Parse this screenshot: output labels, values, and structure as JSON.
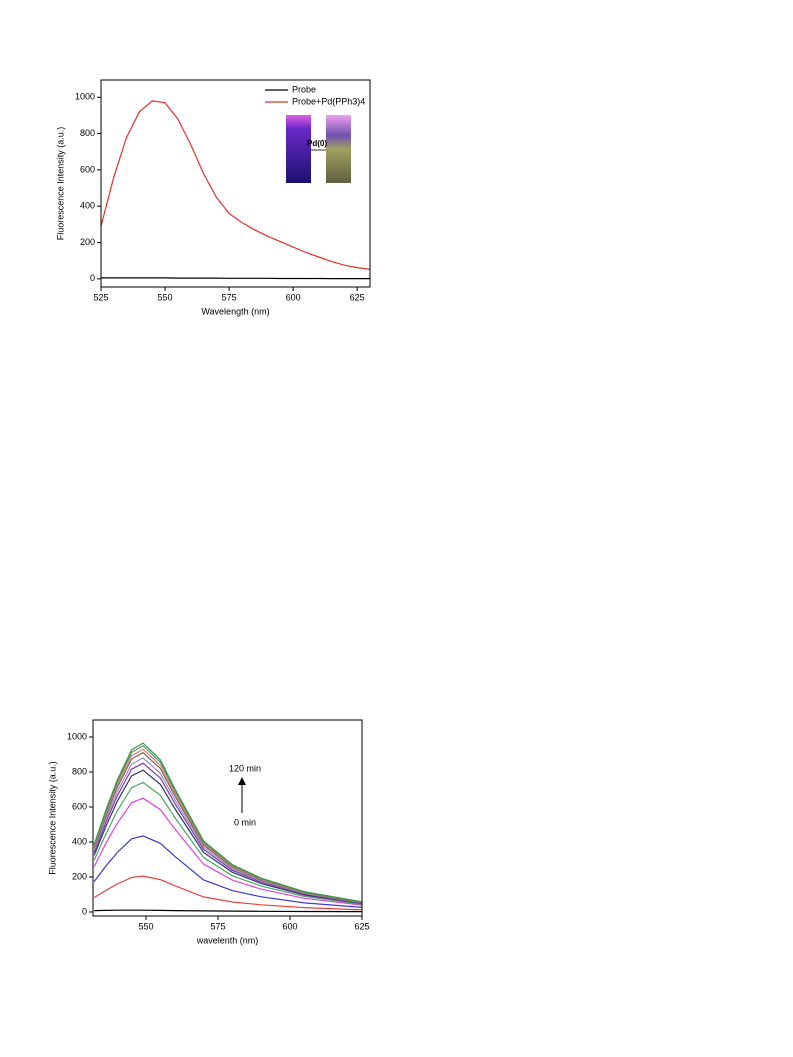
{
  "chart_data": [
    {
      "type": "line",
      "x_label": "Wavelength (nm)",
      "y_label": "Fluorescence Intensity (a.u.)",
      "x": [
        525,
        530,
        535,
        540,
        545,
        550,
        555,
        560,
        565,
        570,
        575,
        580,
        585,
        590,
        595,
        600,
        605,
        610,
        615,
        620,
        625,
        630
      ],
      "series": [
        {
          "name": "Probe",
          "color": "#000000",
          "values": [
            5,
            5,
            5,
            5,
            5,
            5,
            4,
            4,
            4,
            4,
            3,
            3,
            3,
            3,
            2,
            2,
            2,
            2,
            1,
            1,
            1,
            1
          ]
        },
        {
          "name": "Probe+Pd(PPh3)4",
          "color": "#e8302a",
          "values": [
            290,
            560,
            780,
            920,
            980,
            970,
            880,
            740,
            580,
            450,
            360,
            310,
            270,
            235,
            205,
            175,
            145,
            120,
            95,
            75,
            62,
            52
          ]
        }
      ],
      "xlim": [
        525,
        630
      ],
      "xticks": [
        525,
        550,
        575,
        600,
        625
      ],
      "ylim": [
        -45,
        1095
      ],
      "yticks": [
        0,
        200,
        400,
        600,
        800,
        1000
      ],
      "legend": "top-right",
      "annotations": [
        "Pd(0)"
      ]
    },
    {
      "type": "line",
      "x_label": "wavelenth (nm)",
      "y_label": "Fluorescence Intensity (a.u.)",
      "x": [
        532,
        536,
        540,
        545,
        549,
        555,
        560,
        570,
        580,
        590,
        605,
        625
      ],
      "series": [
        {
          "color": "#000000",
          "values": [
            8,
            9,
            10,
            10,
            10,
            9,
            8,
            6,
            5,
            4,
            3,
            2
          ]
        },
        {
          "color": "#e8433c",
          "values": [
            82,
            123,
            160,
            197,
            205,
            185,
            150,
            86,
            57,
            41,
            25,
            12
          ]
        },
        {
          "color": "#3a3ad8",
          "values": [
            174,
            261,
            339,
            418,
            435,
            392,
            318,
            183,
            122,
            87,
            52,
            26
          ]
        },
        {
          "color": "#e040e0",
          "values": [
            260,
            390,
            507,
            624,
            650,
            585,
            475,
            273,
            182,
            130,
            78,
            39
          ]
        },
        {
          "color": "#4aa860",
          "values": [
            296,
            444,
            577,
            710,
            740,
            666,
            540,
            311,
            207,
            148,
            89,
            44
          ]
        },
        {
          "color": "#303070",
          "values": [
            324,
            486,
            632,
            778,
            810,
            729,
            591,
            340,
            227,
            162,
            97,
            49
          ]
        },
        {
          "color": "#7a3aa0",
          "values": [
            340,
            510,
            663,
            816,
            850,
            765,
            621,
            357,
            238,
            170,
            102,
            51
          ]
        },
        {
          "color": "#9a8ad8",
          "values": [
            352,
            528,
            686,
            845,
            880,
            792,
            642,
            370,
            246,
            176,
            106,
            53
          ]
        },
        {
          "color": "#8a6040",
          "values": [
            364,
            546,
            710,
            874,
            910,
            819,
            664,
            382,
            255,
            182,
            109,
            55
          ]
        },
        {
          "color": "#d08070",
          "values": [
            372,
            558,
            725,
            893,
            930,
            837,
            679,
            391,
            260,
            186,
            112,
            56
          ]
        },
        {
          "color": "#5a8a80",
          "values": [
            380,
            570,
            741,
            912,
            950,
            855,
            694,
            399,
            266,
            190,
            114,
            57
          ]
        },
        {
          "color": "#3a9a3a",
          "values": [
            386,
            579,
            753,
            926,
            965,
            869,
            704,
            405,
            270,
            193,
            116,
            58
          ]
        }
      ],
      "xlim": [
        531.6,
        625
      ],
      "xticks": [
        550,
        575,
        600,
        625
      ],
      "ylim": [
        -23,
        1097
      ],
      "yticks": [
        0,
        200,
        400,
        600,
        800,
        1000
      ],
      "annotations": [
        "120 min",
        "0 min"
      ]
    }
  ]
}
